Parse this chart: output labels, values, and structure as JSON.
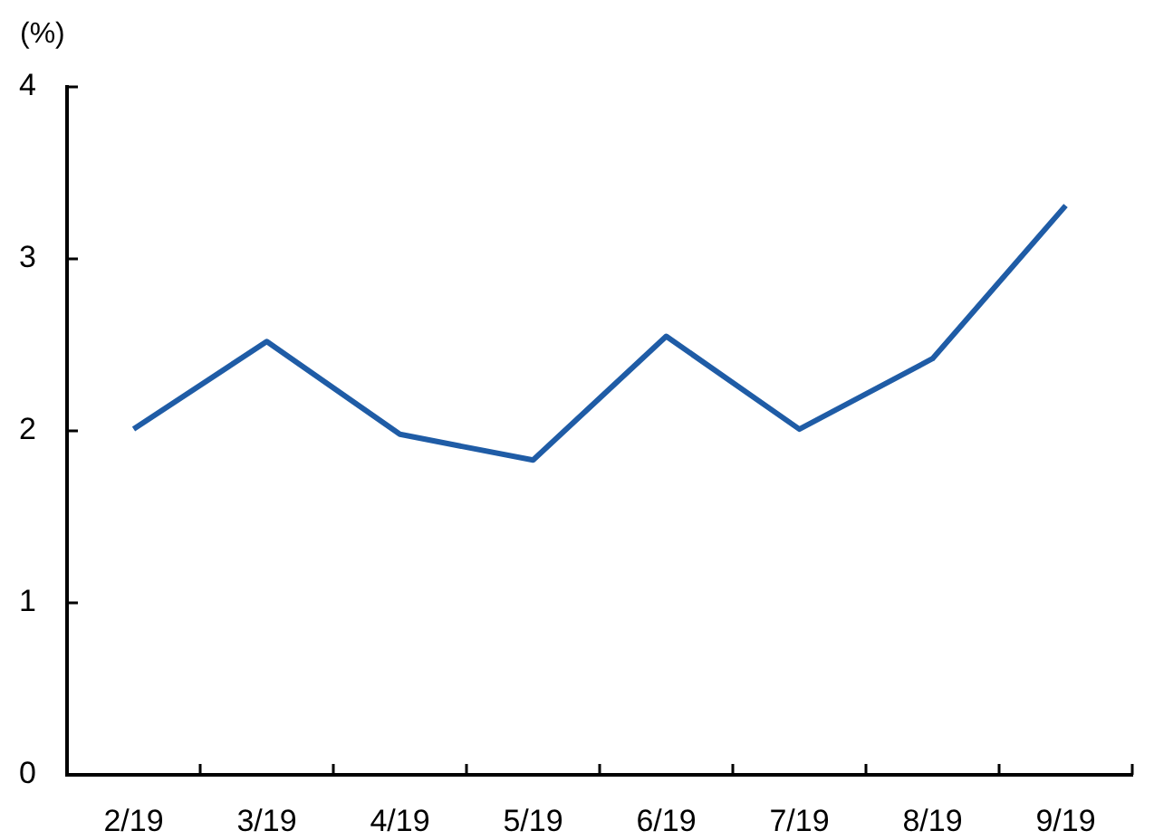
{
  "chart_data": {
    "type": "line",
    "ylabel": "(%)",
    "categories": [
      "2/19",
      "3/19",
      "4/19",
      "5/19",
      "6/19",
      "7/19",
      "8/19",
      "9/19"
    ],
    "series": [
      {
        "color": "#1f5ca6",
        "values": [
          2.01,
          2.52,
          1.98,
          1.83,
          2.55,
          2.01,
          2.42,
          3.31
        ]
      }
    ],
    "ylim": [
      0,
      4
    ],
    "yticks": [
      0,
      1,
      2,
      3,
      4
    ],
    "grid": false,
    "legend": false,
    "marker": "none",
    "line_style": "solid"
  }
}
